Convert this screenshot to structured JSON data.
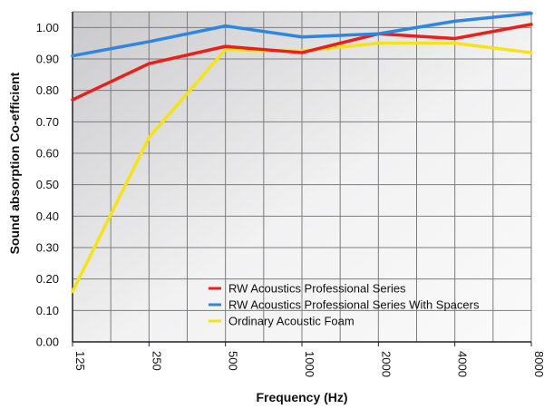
{
  "chart_data": {
    "type": "line",
    "categories": [
      "125",
      "250",
      "500",
      "1000",
      "2000",
      "4000",
      "8000"
    ],
    "xlabel": "Frequency (Hz)",
    "ylabel": "Sound absorption Co-efficient",
    "ylim": [
      0,
      1.05
    ],
    "yticks": [
      "0.00",
      "0.10",
      "0.20",
      "0.30",
      "0.40",
      "0.50",
      "0.60",
      "0.70",
      "0.80",
      "0.90",
      "1.00"
    ],
    "grid": true,
    "legend_position": "bottom-right",
    "series": [
      {
        "name": "RW Acoustics Professional Series",
        "color": "#e8201c",
        "values": [
          0.77,
          0.885,
          0.94,
          0.92,
          0.98,
          0.965,
          1.01
        ]
      },
      {
        "name": "RW Acoustics Professional Series With Spacers",
        "color": "#2e86de",
        "values": [
          0.91,
          0.955,
          1.005,
          0.97,
          0.98,
          1.02,
          1.045
        ]
      },
      {
        "name": "Ordinary Acoustic Foam",
        "color": "#f5e318",
        "values": [
          0.16,
          0.65,
          0.93,
          0.925,
          0.95,
          0.95,
          0.92
        ]
      }
    ]
  }
}
